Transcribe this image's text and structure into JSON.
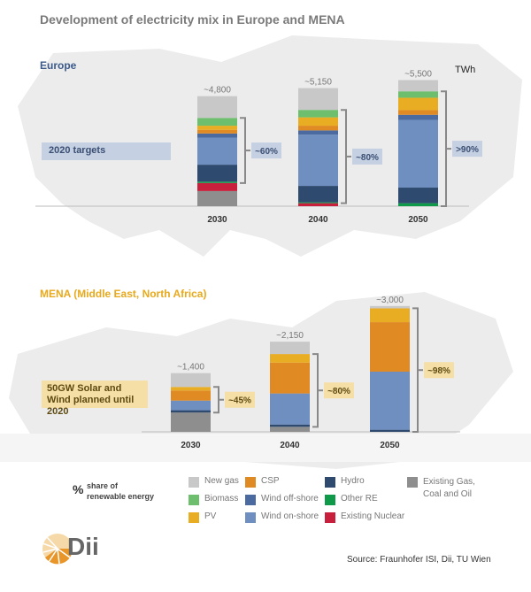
{
  "title": "Development of electricity mix in Europe and MENA",
  "unit": "TWh",
  "colors": {
    "New gas": "#c8c8c8",
    "Biomass": "#6dbf6d",
    "PV": "#e8ad22",
    "CSP": "#e08a24",
    "Wind off-shore": "#4a6aa0",
    "Wind on-shore": "#6e8fc0",
    "Hydro": "#2e4a6e",
    "Other RE": "#0f9a4a",
    "Existing Nuclear": "#c8203c",
    "Existing Gas, Coal and Oil": "#8e8e8e"
  },
  "chart_data": [
    {
      "type": "bar",
      "stacked": true,
      "title": "Europe",
      "ylabel": "TWh",
      "categories": [
        "2030",
        "2040",
        "2050"
      ],
      "totals_labels": [
        "~4,800",
        "~5,150",
        "~5,500"
      ],
      "renewable_share_labels": [
        "~60%",
        "~80%",
        ">90%"
      ],
      "annotation": "2020  targets",
      "series": [
        {
          "name": "Existing Gas, Coal and Oil",
          "values": [
            660,
            0,
            0
          ]
        },
        {
          "name": "Existing Nuclear",
          "values": [
            350,
            130,
            0
          ]
        },
        {
          "name": "Other RE",
          "values": [
            60,
            40,
            130
          ]
        },
        {
          "name": "Hydro",
          "values": [
            740,
            715,
            680
          ]
        },
        {
          "name": "Wind on-shore",
          "values": [
            1180,
            2235,
            2955
          ]
        },
        {
          "name": "Wind off-shore",
          "values": [
            180,
            185,
            220
          ]
        },
        {
          "name": "CSP",
          "values": [
            160,
            205,
            205
          ]
        },
        {
          "name": "PV",
          "values": [
            180,
            365,
            540
          ]
        },
        {
          "name": "Biomass",
          "values": [
            340,
            325,
            280
          ]
        },
        {
          "name": "New gas",
          "values": [
            950,
            950,
            490
          ]
        }
      ]
    },
    {
      "type": "bar",
      "stacked": true,
      "title": "MENA (Middle East, North Africa)",
      "ylabel": "TWh",
      "categories": [
        "2030",
        "2040",
        "2050"
      ],
      "totals_labels": [
        "~1,400",
        "~2,150",
        "~3,000"
      ],
      "renewable_share_labels": [
        "~45%",
        "~80%",
        "~98%"
      ],
      "annotation": "50GW Solar and Wind planned until 2020",
      "series": [
        {
          "name": "Existing Gas, Coal and Oil",
          "values": [
            460,
            120,
            0
          ]
        },
        {
          "name": "Existing Nuclear",
          "values": [
            0,
            0,
            0
          ]
        },
        {
          "name": "Other RE",
          "values": [
            0,
            0,
            0
          ]
        },
        {
          "name": "Hydro",
          "values": [
            55,
            55,
            50
          ]
        },
        {
          "name": "Wind on-shore",
          "values": [
            230,
            740,
            1385
          ]
        },
        {
          "name": "Wind off-shore",
          "values": [
            0,
            0,
            0
          ]
        },
        {
          "name": "CSP",
          "values": [
            240,
            735,
            1180
          ]
        },
        {
          "name": "PV",
          "values": [
            85,
            205,
            330
          ]
        },
        {
          "name": "Biomass",
          "values": [
            0,
            0,
            0
          ]
        },
        {
          "name": "New gas",
          "values": [
            330,
            295,
            55
          ]
        }
      ]
    }
  ],
  "legend": {
    "pct_symbol": "%",
    "pct_label_1": "share of",
    "pct_label_2": "renewable energy",
    "items": [
      "New gas",
      "Biomass",
      "PV",
      "CSP",
      "Wind off-shore",
      "Wind on-shore",
      "Hydro",
      "Other RE",
      "Existing Nuclear"
    ],
    "existing_1": "Existing Gas,",
    "existing_2": "Coal and Oil"
  },
  "source": "Source: Fraunhofer ISI, Dii, TU Wien",
  "logo": "Dii"
}
